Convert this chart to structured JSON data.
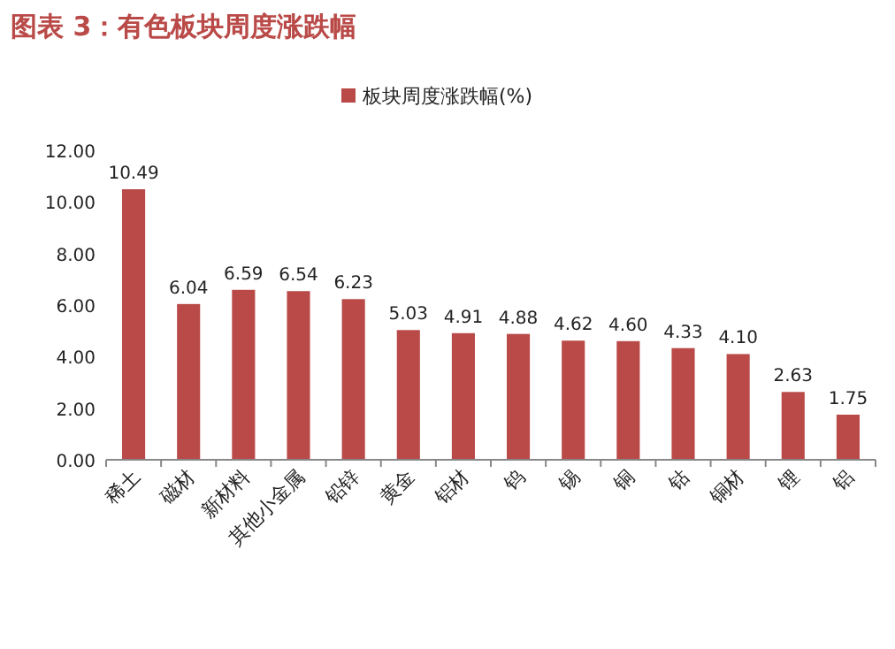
{
  "chart_data": {
    "type": "bar",
    "title": "图表 3：有色板块周度涨跌幅",
    "categories": [
      "稀土",
      "磁材",
      "新材料",
      "其他小金属",
      "铅锌",
      "黄金",
      "铝材",
      "钨",
      "锡",
      "铜",
      "钴",
      "铜材",
      "锂",
      "铝"
    ],
    "series": [
      {
        "name": "板块周度涨跌幅(%)",
        "color": "#b94a48",
        "values": [
          10.49,
          6.04,
          6.59,
          6.54,
          6.23,
          5.03,
          4.91,
          4.88,
          4.62,
          4.6,
          4.33,
          4.1,
          2.63,
          1.75
        ],
        "value_labels": [
          "10.49",
          "6.04",
          "6.59",
          "6.54",
          "6.23",
          "5.03",
          "4.91",
          "4.88",
          "4.62",
          "4.60",
          "4.33",
          "4.10",
          "2.63",
          "1.75"
        ]
      }
    ],
    "ylim": [
      0,
      12
    ],
    "yticks": [
      {
        "value": 0,
        "label": "0.00"
      },
      {
        "value": 2,
        "label": "2.00"
      },
      {
        "value": 4,
        "label": "4.00"
      },
      {
        "value": 6,
        "label": "6.00"
      },
      {
        "value": 8,
        "label": "8.00"
      },
      {
        "value": 10,
        "label": "10.00"
      },
      {
        "value": 12,
        "label": "12.00"
      }
    ],
    "legend": "top",
    "grid": false
  }
}
